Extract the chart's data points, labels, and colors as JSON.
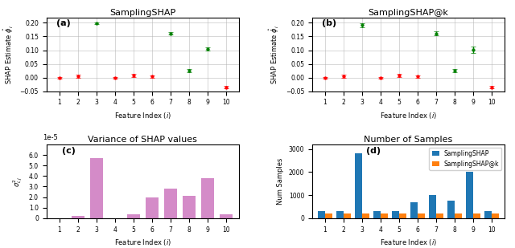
{
  "features": [
    1,
    2,
    3,
    4,
    5,
    6,
    7,
    8,
    9,
    10
  ],
  "shap_a_values": [
    0.0,
    0.005,
    0.197,
    -0.002,
    0.008,
    0.004,
    0.161,
    0.025,
    0.105,
    -0.035
  ],
  "shap_a_errors": [
    0.003,
    0.005,
    0.003,
    0.003,
    0.005,
    0.005,
    0.005,
    0.005,
    0.005,
    0.005
  ],
  "shap_a_colors": [
    "red",
    "red",
    "green",
    "red",
    "red",
    "red",
    "green",
    "green",
    "green",
    "red"
  ],
  "shap_b_values": [
    0.0,
    0.005,
    0.192,
    -0.002,
    0.008,
    0.004,
    0.161,
    0.025,
    0.102,
    -0.035
  ],
  "shap_b_errors": [
    0.003,
    0.005,
    0.007,
    0.003,
    0.005,
    0.005,
    0.007,
    0.005,
    0.012,
    0.005
  ],
  "shap_b_colors": [
    "red",
    "red",
    "green",
    "red",
    "red",
    "red",
    "green",
    "green",
    "green",
    "red"
  ],
  "variance_values_scaled": [
    0.0,
    0.2,
    5.7,
    0.0,
    0.4,
    2.0,
    2.8,
    2.1,
    3.8,
    0.4
  ],
  "samples_shap": [
    300,
    300,
    2800,
    300,
    300,
    700,
    1000,
    750,
    2000,
    300
  ],
  "samples_atk": [
    200,
    200,
    200,
    200,
    200,
    200,
    200,
    200,
    200,
    200
  ],
  "title_a": "SamplingSHAP",
  "title_b": "SamplingSHAP@k",
  "title_c": "Variance of SHAP values",
  "title_d": "Number of Samples",
  "label_a": "(a)",
  "label_b": "(b)",
  "label_c": "(c)",
  "label_d": "(d)",
  "ylabel_ab": "SHAP Estimate $\\hat{\\phi}_i$",
  "ylabel_c": "$\\sigma^2_{i,j}$",
  "ylabel_d": "Num Samples",
  "xlabel": "Feature Index ($i$)",
  "ylim_ab": [
    -0.05,
    0.22
  ],
  "ylim_c_scaled": [
    0,
    7.0
  ],
  "ylim_d": [
    0,
    3200
  ],
  "bar_color_c": "#d48bc8",
  "bar_color_shap": "#1f77b4",
  "bar_color_atk": "#ff7f0e",
  "legend_labels": [
    "SamplingSHAP",
    "SamplingSHAP@k"
  ]
}
